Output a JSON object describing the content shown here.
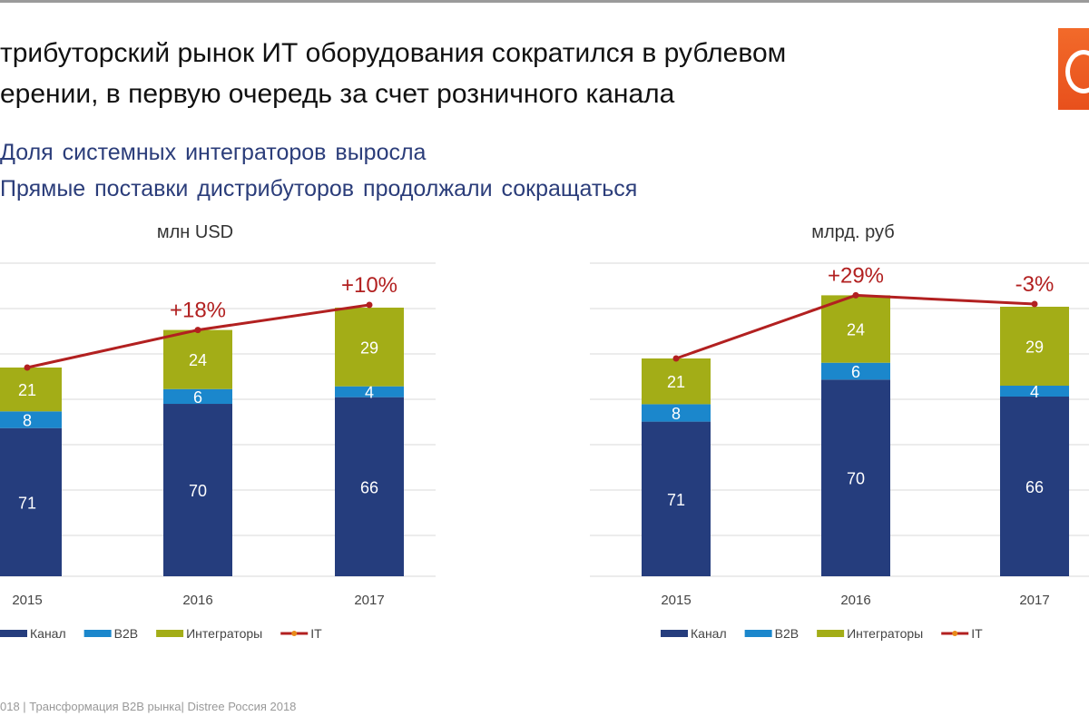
{
  "title_lines": [
    "трибуторский рынок ИТ оборудования сократился в рублевом",
    "ерении, в первую очередь за счет розничного канала"
  ],
  "bullets": [
    "Доля системных интеграторов выросла",
    "Прямые поставки дистрибуторов продолжали сокращаться"
  ],
  "footer": "018 | Трансформация B2B рынка| Distree Россия 2018",
  "colors": {
    "Канал": "#253d7d",
    "B2B": "#1b87cc",
    "Интеграторы": "#a3ad17",
    "IT": "#b22020"
  },
  "chart_data": [
    {
      "type": "bar",
      "stacked": true,
      "title": "млн USD",
      "categories": [
        "2015",
        "2016",
        "2017"
      ],
      "series": [
        {
          "name": "Канал",
          "values": [
            71,
            70,
            66
          ]
        },
        {
          "name": "B2B",
          "values": [
            8,
            6,
            4
          ]
        },
        {
          "name": "Интеграторы",
          "values": [
            21,
            24,
            29
          ]
        }
      ],
      "line": {
        "name": "IT",
        "growth_labels": [
          "",
          "+18%",
          "+10%"
        ],
        "index": [
          1.0,
          1.18,
          1.3
        ]
      },
      "legend": [
        "Канал",
        "B2B",
        "Интеграторы",
        "IT"
      ],
      "legend_position": "bottom",
      "grid": true
    },
    {
      "type": "bar",
      "stacked": true,
      "title": "млрд. руб",
      "categories": [
        "2015",
        "2016",
        "2017"
      ],
      "series": [
        {
          "name": "Канал",
          "values": [
            71,
            70,
            66
          ]
        },
        {
          "name": "B2B",
          "values": [
            8,
            6,
            4
          ]
        },
        {
          "name": "Интеграторы",
          "values": [
            21,
            24,
            29
          ]
        }
      ],
      "line": {
        "name": "IT",
        "growth_labels": [
          "",
          "+29%",
          "-3%"
        ],
        "index": [
          1.0,
          1.29,
          1.25
        ]
      },
      "legend": [
        "Канал",
        "B2B",
        "Интеграторы",
        "IT"
      ],
      "legend_position": "bottom",
      "grid": true
    }
  ]
}
